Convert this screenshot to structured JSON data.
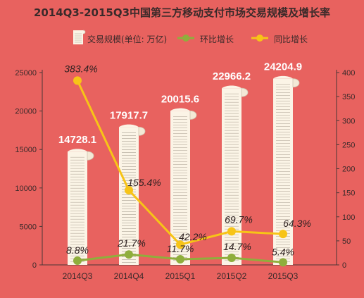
{
  "chart_data": {
    "type": "bar",
    "title": "2014Q3-2015Q3中国第三方移动支付市场交易规模及增长率",
    "categories": [
      "2014Q3",
      "2014Q4",
      "2015Q1",
      "2015Q2",
      "2015Q3"
    ],
    "series": [
      {
        "name": "交易规模(单位: 万亿)",
        "type": "bar",
        "axis": "left",
        "values": [
          14728.1,
          17917.7,
          20015.6,
          22966.2,
          24204.9
        ],
        "labels": [
          "14728.1",
          "17917.7",
          "20015.6",
          "22966.2",
          "24204.9"
        ]
      },
      {
        "name": "环比增长",
        "type": "line",
        "axis": "right",
        "values": [
          8.8,
          21.7,
          11.7,
          14.7,
          5.4
        ],
        "labels": [
          "8.8%",
          "21.7%",
          "11.7%",
          "14.7%",
          "5.4%"
        ]
      },
      {
        "name": "同比增长",
        "type": "line",
        "axis": "right",
        "values": [
          383.4,
          155.4,
          42.2,
          69.7,
          64.3
        ],
        "labels": [
          "383.4%",
          "155.4%",
          "42.2%",
          "69.7%",
          "64.3%"
        ]
      }
    ],
    "left_axis": {
      "ylim": [
        0,
        25000
      ],
      "ticks": [
        "0",
        "5000",
        "10000",
        "15000",
        "20000",
        "25000"
      ]
    },
    "right_axis": {
      "ylim": [
        0,
        400
      ],
      "ticks": [
        "0",
        "50",
        "100",
        "150",
        "200",
        "250",
        "300",
        "350",
        "400"
      ]
    },
    "grid": false,
    "legend_position": "top",
    "colors": {
      "background": "#e8625f",
      "bar": "#fbf4e6",
      "bar_lines": "#b8aea0",
      "hb_line": "#8fae3c",
      "tb_line": "#f7c417",
      "text": "#3a2a2a",
      "value_text": "#ffffff",
      "tb_label": "#2d2020"
    }
  }
}
